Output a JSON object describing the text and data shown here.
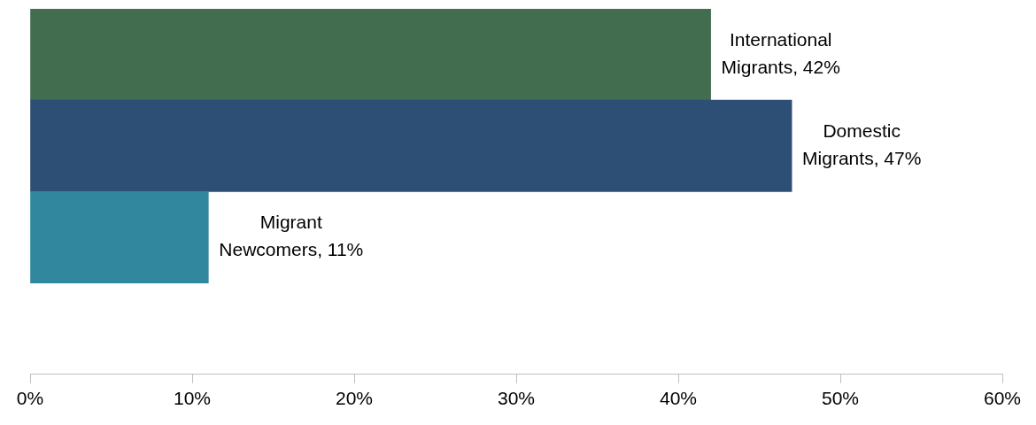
{
  "chart_data": {
    "type": "bar",
    "orientation": "horizontal",
    "categories": [
      null,
      null,
      null
    ],
    "values": [
      42,
      47,
      11
    ],
    "colors": [
      "#426d4f",
      "#2e4f75",
      "#31879e"
    ],
    "value_labels": [
      "International Migrants, 42%",
      "Domestic Migrants, 47%",
      "Migrant Newcomers, 11%"
    ],
    "xlim": [
      0,
      60
    ],
    "xticks": [
      {
        "value": 0,
        "label": "0%"
      },
      {
        "value": 10,
        "label": "10%"
      },
      {
        "value": 20,
        "label": "20%"
      },
      {
        "value": 30,
        "label": "30%"
      },
      {
        "value": 40,
        "label": "40%"
      },
      {
        "value": 50,
        "label": "50%"
      },
      {
        "value": 60,
        "label": "60%"
      }
    ],
    "grid": false,
    "legend": false
  }
}
